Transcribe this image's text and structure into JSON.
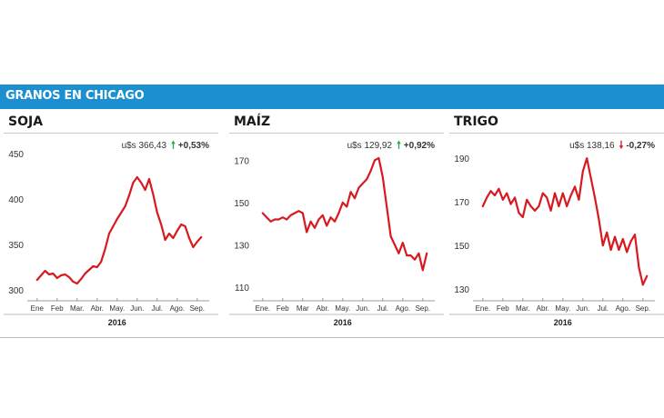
{
  "header": {
    "title": "GRANOS EN CHICAGO"
  },
  "colors": {
    "banner": "#1b8fd0",
    "line": "#d71920",
    "up": "#2aa84a",
    "down": "#d71920"
  },
  "panels": [
    {
      "title": "SOJA",
      "price": "u$s 366,43",
      "direction": "up",
      "change": "+0,53%"
    },
    {
      "title": "MAÍZ",
      "price": "u$s 129,92",
      "direction": "up",
      "change": "+0,92%"
    },
    {
      "title": "TRIGO",
      "price": "u$s 138,16",
      "direction": "down",
      "change": "-0,27%"
    }
  ],
  "chart_data": [
    {
      "type": "line",
      "title": "SOJA",
      "xlabel": "2016",
      "ylabel": "",
      "x_ticks": [
        "Ene",
        "Feb",
        "Mar.",
        "Abr.",
        "May.",
        "Jun.",
        "Jul.",
        "Ago.",
        "Sep."
      ],
      "y_ticks": [
        300,
        350,
        400,
        450
      ],
      "ylim": [
        296,
        452
      ],
      "x": [
        0,
        0.2,
        0.4,
        0.6,
        0.8,
        1.0,
        1.2,
        1.4,
        1.6,
        1.8,
        2.0,
        2.2,
        2.4,
        2.6,
        2.8,
        3.0,
        3.2,
        3.4,
        3.6,
        3.8,
        4.0,
        4.2,
        4.4,
        4.6,
        4.8,
        5.0,
        5.2,
        5.4,
        5.6,
        5.8,
        6.0,
        6.2,
        6.4,
        6.6,
        6.8,
        7.0,
        7.2,
        7.4,
        7.6,
        7.8,
        8.0,
        8.2
      ],
      "series": [
        {
          "values": [
            311,
            316,
            321,
            317,
            318,
            313,
            316,
            317,
            314,
            309,
            307,
            312,
            318,
            322,
            326,
            325,
            331,
            345,
            362,
            370,
            378,
            385,
            392,
            404,
            418,
            424,
            418,
            410,
            422,
            405,
            385,
            372,
            355,
            362,
            357,
            365,
            372,
            370,
            357,
            347,
            353,
            358
          ]
        }
      ]
    },
    {
      "type": "line",
      "title": "MAÍZ",
      "xlabel": "2016",
      "ylabel": "",
      "x_ticks": [
        "Ene.",
        "Feb",
        "Mar",
        "Abr.",
        "May.",
        "Jun.",
        "Jul.",
        "Ago.",
        "Sep."
      ],
      "y_ticks": [
        110,
        130,
        150,
        170
      ],
      "ylim": [
        107,
        174
      ],
      "x": [
        0,
        0.2,
        0.4,
        0.6,
        0.8,
        1.0,
        1.2,
        1.4,
        1.6,
        1.8,
        2.0,
        2.2,
        2.4,
        2.6,
        2.8,
        3.0,
        3.2,
        3.4,
        3.6,
        3.8,
        4.0,
        4.2,
        4.4,
        4.6,
        4.8,
        5.0,
        5.2,
        5.4,
        5.6,
        5.8,
        6.0,
        6.2,
        6.4,
        6.6,
        6.8,
        7.0,
        7.2,
        7.4,
        7.6,
        7.8,
        8.0,
        8.2
      ],
      "series": [
        {
          "values": [
            145,
            143,
            141,
            142,
            142,
            143,
            142,
            144,
            145,
            146,
            145,
            136,
            141,
            138,
            142,
            144,
            139,
            143,
            141,
            145,
            150,
            148,
            155,
            152,
            157,
            159,
            161,
            165,
            170,
            171,
            162,
            148,
            134,
            130,
            126,
            131,
            125,
            125,
            123,
            126,
            118,
            126
          ]
        }
      ]
    },
    {
      "type": "line",
      "title": "TRIGO",
      "xlabel": "2016",
      "ylabel": "",
      "x_ticks": [
        "Ene.",
        "Feb",
        "Mar.",
        "Abr.",
        "May.",
        "Jun.",
        "Jul.",
        "Ago.",
        "Sep."
      ],
      "y_ticks": [
        130,
        150,
        170,
        190
      ],
      "ylim": [
        128,
        193
      ],
      "x": [
        0,
        0.2,
        0.4,
        0.6,
        0.8,
        1.0,
        1.2,
        1.4,
        1.6,
        1.8,
        2.0,
        2.2,
        2.4,
        2.6,
        2.8,
        3.0,
        3.2,
        3.4,
        3.6,
        3.8,
        4.0,
        4.2,
        4.4,
        4.6,
        4.8,
        5.0,
        5.2,
        5.4,
        5.6,
        5.8,
        6.0,
        6.2,
        6.4,
        6.6,
        6.8,
        7.0,
        7.2,
        7.4,
        7.6,
        7.8,
        8.0,
        8.2
      ],
      "series": [
        {
          "values": [
            168,
            172,
            175,
            173,
            176,
            171,
            174,
            169,
            172,
            165,
            163,
            171,
            168,
            166,
            168,
            174,
            172,
            166,
            174,
            168,
            174,
            168,
            173,
            177,
            171,
            184,
            190,
            181,
            172,
            162,
            150,
            156,
            148,
            154,
            148,
            153,
            147,
            152,
            155,
            140,
            132,
            136
          ]
        }
      ]
    }
  ]
}
